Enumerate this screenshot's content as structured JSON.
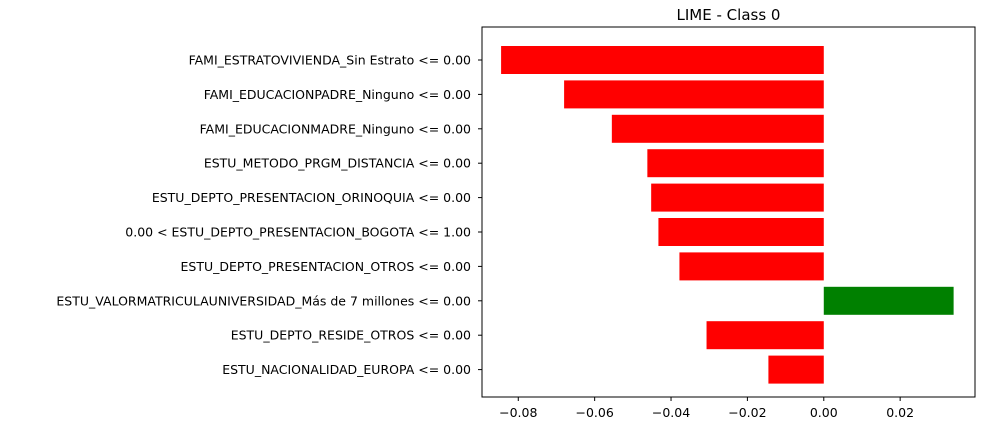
{
  "chart_data": {
    "type": "bar",
    "orientation": "horizontal",
    "title": "LIME - Class 0",
    "xlabel": "",
    "ylabel": "",
    "categories": [
      "FAMI_ESTRATOVIVIENDA_Sin Estrato <= 0.00",
      "FAMI_EDUCACIONPADRE_Ninguno <= 0.00",
      "FAMI_EDUCACIONMADRE_Ninguno <= 0.00",
      "ESTU_METODO_PRGM_DISTANCIA <= 0.00",
      "ESTU_DEPTO_PRESENTACION_ORINOQUIA <= 0.00",
      "0.00 < ESTU_DEPTO_PRESENTACION_BOGOTA <= 1.00",
      "ESTU_DEPTO_PRESENTACION_OTROS <= 0.00",
      "ESTU_VALORMATRICULAUNIVERSIDAD_Más de 7 millones <= 0.00",
      "ESTU_DEPTO_RESIDE_OTROS <= 0.00",
      "ESTU_NACIONALIDAD_EUROPA <= 0.00"
    ],
    "values": [
      -0.0845,
      -0.068,
      -0.0555,
      -0.0462,
      -0.0452,
      -0.0433,
      -0.0378,
      0.034,
      -0.0307,
      -0.0145
    ],
    "xlim": [
      -0.0895,
      0.0396
    ],
    "xticks": [
      -0.08,
      -0.06,
      -0.04,
      -0.02,
      0.0,
      0.02
    ],
    "xtick_labels": [
      "−0.08",
      "−0.06",
      "−0.04",
      "−0.02",
      "0.00",
      "0.02"
    ],
    "colors": {
      "negative": "#ff0000",
      "positive": "#008000"
    },
    "grid": false
  }
}
